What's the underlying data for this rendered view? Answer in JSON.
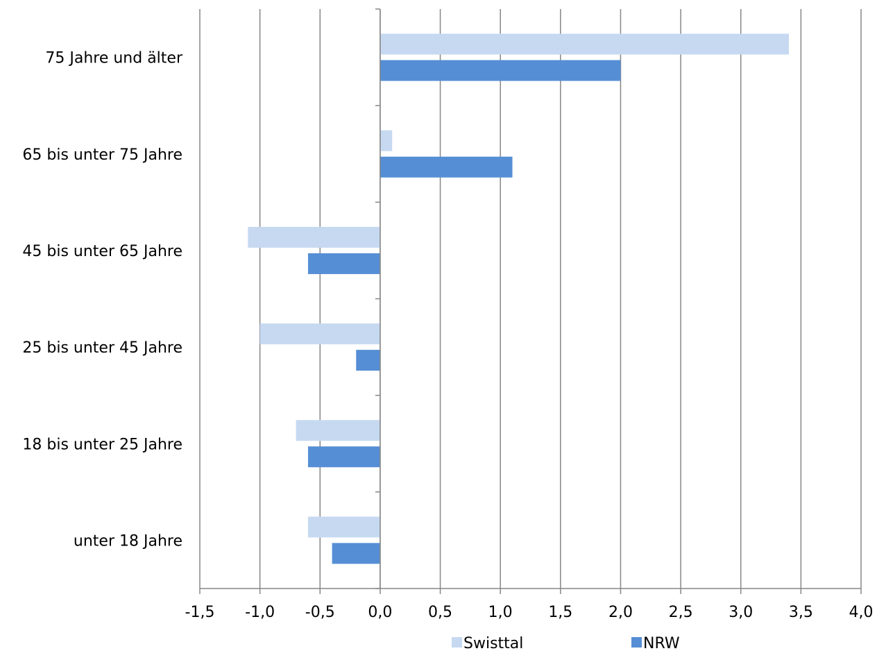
{
  "chart_data": {
    "type": "bar",
    "orientation": "horizontal",
    "categories": [
      "75 Jahre und älter",
      "65 bis unter 75 Jahre",
      "45 bis unter 65 Jahre",
      "25 bis unter 45 Jahre",
      "18 bis unter 25 Jahre",
      "unter 18 Jahre"
    ],
    "series": [
      {
        "name": "Swisttal",
        "color": "#c6d9f1",
        "values": [
          3.4,
          0.1,
          -1.1,
          -1.0,
          -0.7,
          -0.6
        ]
      },
      {
        "name": "NRW",
        "color": "#558ed5",
        "values": [
          2.0,
          1.1,
          -0.6,
          -0.2,
          -0.6,
          -0.4
        ]
      }
    ],
    "xlim": [
      -1.5,
      4.0
    ],
    "xticks": [
      "-1,5",
      "-1,0",
      "-0,5",
      "0,0",
      "0,5",
      "1,0",
      "1,5",
      "2,0",
      "2,5",
      "3,0",
      "3,5",
      "4,0"
    ],
    "grid": "vertical",
    "legend_position": "bottom",
    "title": "",
    "xlabel": "",
    "ylabel": ""
  }
}
